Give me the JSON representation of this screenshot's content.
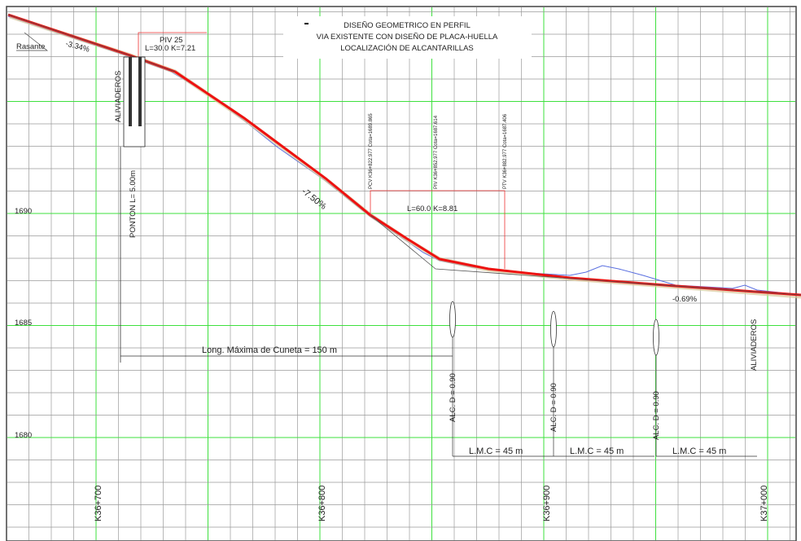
{
  "title": {
    "line1": "DISEÑO GEOMETRICO EN PERFIL",
    "line2": "VIA EXISTENTE CON DISEÑO DE  PLACA-HUELLA",
    "line3": "LOCALIZACIÓN DE ALCANTARILLAS"
  },
  "elevations": [
    "1690",
    "1685",
    "1680"
  ],
  "stations": [
    "K36+700",
    "K36+800",
    "K36+900",
    "K37+000"
  ],
  "annotations": {
    "rasante": "Rasante",
    "slope1": "-3.34%",
    "piv": "PIV 25",
    "curve1": "L=30.0 K=7.21",
    "aliviaderos1": "ALIVIADEROS",
    "ponton": "PONTON L= 5.00m",
    "slope2": "-7.50%",
    "pcv": "PCV K36+822.977 Cota=1689.865",
    "piv2": "PIV K36+852.977 Cota=1687.614",
    "ptv": "PTV K36+882.977 Cota=1687.406",
    "curve2": "L=60.0 K=8.81",
    "slope3": "-0.69%",
    "aliviaderos2": "ALIVIADEROS",
    "cuneta": "Long. Máxima de Cuneta = 150 m",
    "alc": [
      "ALC. D = 0.90",
      "ALC. D = 0.90",
      "ALC. D = 0.90"
    ],
    "lmc": [
      "L.M.C = 45 m",
      "L.M.C = 45 m",
      "L.M.C = 45 m"
    ]
  }
}
